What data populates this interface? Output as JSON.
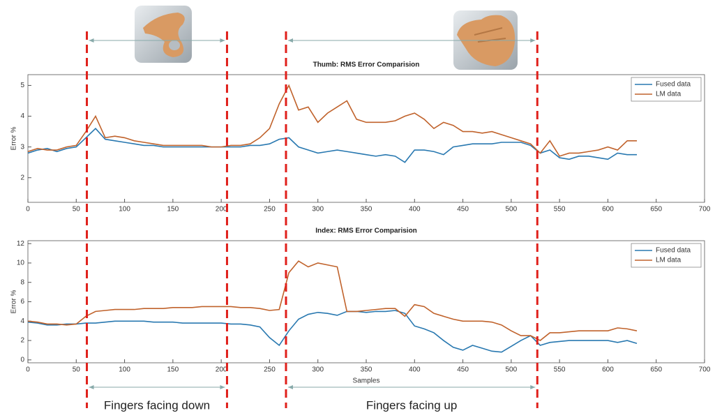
{
  "chart_data": [
    {
      "type": "line",
      "title": "Thumb: RMS Error Comparision",
      "ylabel": "Error %",
      "x": [
        0,
        10,
        20,
        30,
        40,
        50,
        60,
        70,
        80,
        90,
        100,
        110,
        120,
        130,
        140,
        150,
        160,
        170,
        180,
        190,
        200,
        210,
        220,
        230,
        240,
        250,
        260,
        270,
        280,
        290,
        300,
        310,
        320,
        330,
        340,
        350,
        360,
        370,
        380,
        390,
        400,
        410,
        420,
        430,
        440,
        450,
        460,
        470,
        480,
        490,
        500,
        510,
        520,
        530,
        540,
        550,
        560,
        570,
        580,
        590,
        600,
        610,
        620,
        630
      ],
      "series": [
        {
          "name": "Fused data",
          "color": "#2878b0",
          "values": [
            2.8,
            2.9,
            2.95,
            2.85,
            2.95,
            3.0,
            3.3,
            3.6,
            3.25,
            3.2,
            3.15,
            3.1,
            3.05,
            3.05,
            3.0,
            3.0,
            3.0,
            3.0,
            3.0,
            3.0,
            3.0,
            3.0,
            3.0,
            3.05,
            3.05,
            3.1,
            3.25,
            3.3,
            3.0,
            2.9,
            2.8,
            2.85,
            2.9,
            2.85,
            2.8,
            2.75,
            2.7,
            2.75,
            2.7,
            2.5,
            2.9,
            2.9,
            2.85,
            2.75,
            3.0,
            3.05,
            3.1,
            3.1,
            3.1,
            3.15,
            3.15,
            3.15,
            3.05,
            2.8,
            2.9,
            2.65,
            2.6,
            2.7,
            2.7,
            2.65,
            2.6,
            2.8,
            2.75,
            2.75
          ]
        },
        {
          "name": "LM data",
          "color": "#c0622b",
          "values": [
            2.85,
            2.95,
            2.9,
            2.9,
            3.0,
            3.05,
            3.5,
            4.0,
            3.3,
            3.35,
            3.3,
            3.2,
            3.15,
            3.1,
            3.05,
            3.05,
            3.05,
            3.05,
            3.05,
            3.0,
            3.0,
            3.05,
            3.05,
            3.1,
            3.3,
            3.6,
            4.4,
            5.0,
            4.2,
            4.3,
            3.8,
            4.1,
            4.3,
            4.5,
            3.9,
            3.8,
            3.8,
            3.8,
            3.85,
            4.0,
            4.1,
            3.9,
            3.6,
            3.8,
            3.7,
            3.5,
            3.5,
            3.45,
            3.5,
            3.4,
            3.3,
            3.2,
            3.1,
            2.8,
            3.2,
            2.7,
            2.8,
            2.8,
            2.85,
            2.9,
            3.0,
            2.9,
            3.2,
            3.2
          ]
        }
      ],
      "xlim": [
        0,
        700
      ],
      "xticks": [
        0,
        50,
        100,
        150,
        200,
        250,
        300,
        350,
        400,
        450,
        500,
        550,
        600,
        650,
        700
      ],
      "ylim": [
        1.2,
        5.35
      ],
      "yticks": [
        2,
        3,
        4,
        5
      ],
      "grid": false,
      "legend": "upper-right"
    },
    {
      "type": "line",
      "title": "Index: RMS Error Comparision",
      "xlabel": "Samples",
      "ylabel": "Error %",
      "x": [
        0,
        10,
        20,
        30,
        40,
        50,
        60,
        70,
        80,
        90,
        100,
        110,
        120,
        130,
        140,
        150,
        160,
        170,
        180,
        190,
        200,
        210,
        220,
        230,
        240,
        250,
        260,
        270,
        280,
        290,
        300,
        310,
        320,
        330,
        340,
        350,
        360,
        370,
        380,
        390,
        400,
        410,
        420,
        430,
        440,
        450,
        460,
        470,
        480,
        490,
        500,
        510,
        520,
        530,
        540,
        550,
        560,
        570,
        580,
        590,
        600,
        610,
        620,
        630
      ],
      "series": [
        {
          "name": "Fused data",
          "color": "#2878b0",
          "values": [
            3.9,
            3.8,
            3.6,
            3.6,
            3.7,
            3.7,
            3.8,
            3.8,
            3.9,
            4.0,
            4.0,
            4.0,
            4.0,
            3.9,
            3.9,
            3.9,
            3.8,
            3.8,
            3.8,
            3.8,
            3.8,
            3.7,
            3.7,
            3.6,
            3.4,
            2.3,
            1.5,
            3.0,
            4.2,
            4.7,
            4.9,
            4.8,
            4.6,
            5.0,
            5.0,
            4.9,
            5.0,
            5.0,
            5.1,
            4.8,
            3.5,
            3.2,
            2.8,
            2.0,
            1.3,
            1.0,
            1.5,
            1.2,
            0.9,
            0.8,
            1.4,
            2.0,
            2.5,
            1.5,
            1.8,
            1.9,
            2.0,
            2.0,
            2.0,
            2.0,
            2.0,
            1.8,
            2.0,
            1.7
          ]
        },
        {
          "name": "LM data",
          "color": "#c0622b",
          "values": [
            4.0,
            3.9,
            3.7,
            3.7,
            3.6,
            3.7,
            4.5,
            5.0,
            5.1,
            5.2,
            5.2,
            5.2,
            5.3,
            5.3,
            5.3,
            5.4,
            5.4,
            5.4,
            5.5,
            5.5,
            5.5,
            5.5,
            5.4,
            5.4,
            5.3,
            5.1,
            5.2,
            9.0,
            10.2,
            9.6,
            10.0,
            9.8,
            9.6,
            5.0,
            5.0,
            5.1,
            5.2,
            5.3,
            5.3,
            4.5,
            5.7,
            5.5,
            4.8,
            4.5,
            4.2,
            4.0,
            4.0,
            4.0,
            3.9,
            3.6,
            3.0,
            2.5,
            2.5,
            2.0,
            2.8,
            2.8,
            2.9,
            3.0,
            3.0,
            3.0,
            3.0,
            3.3,
            3.2,
            3.0
          ]
        }
      ],
      "xlim": [
        0,
        700
      ],
      "xticks": [
        0,
        50,
        100,
        150,
        200,
        250,
        300,
        350,
        400,
        450,
        500,
        550,
        600,
        650,
        700
      ],
      "ylim": [
        -0.3,
        12.3
      ],
      "yticks": [
        0,
        2,
        4,
        6,
        8,
        10,
        12
      ],
      "grid": false,
      "legend": "upper-right"
    }
  ],
  "annotations": [
    {
      "label": "Fingers facing down",
      "start": 61,
      "end": 206
    },
    {
      "label": "Fingers facing up",
      "start": 267,
      "end": 527
    }
  ]
}
